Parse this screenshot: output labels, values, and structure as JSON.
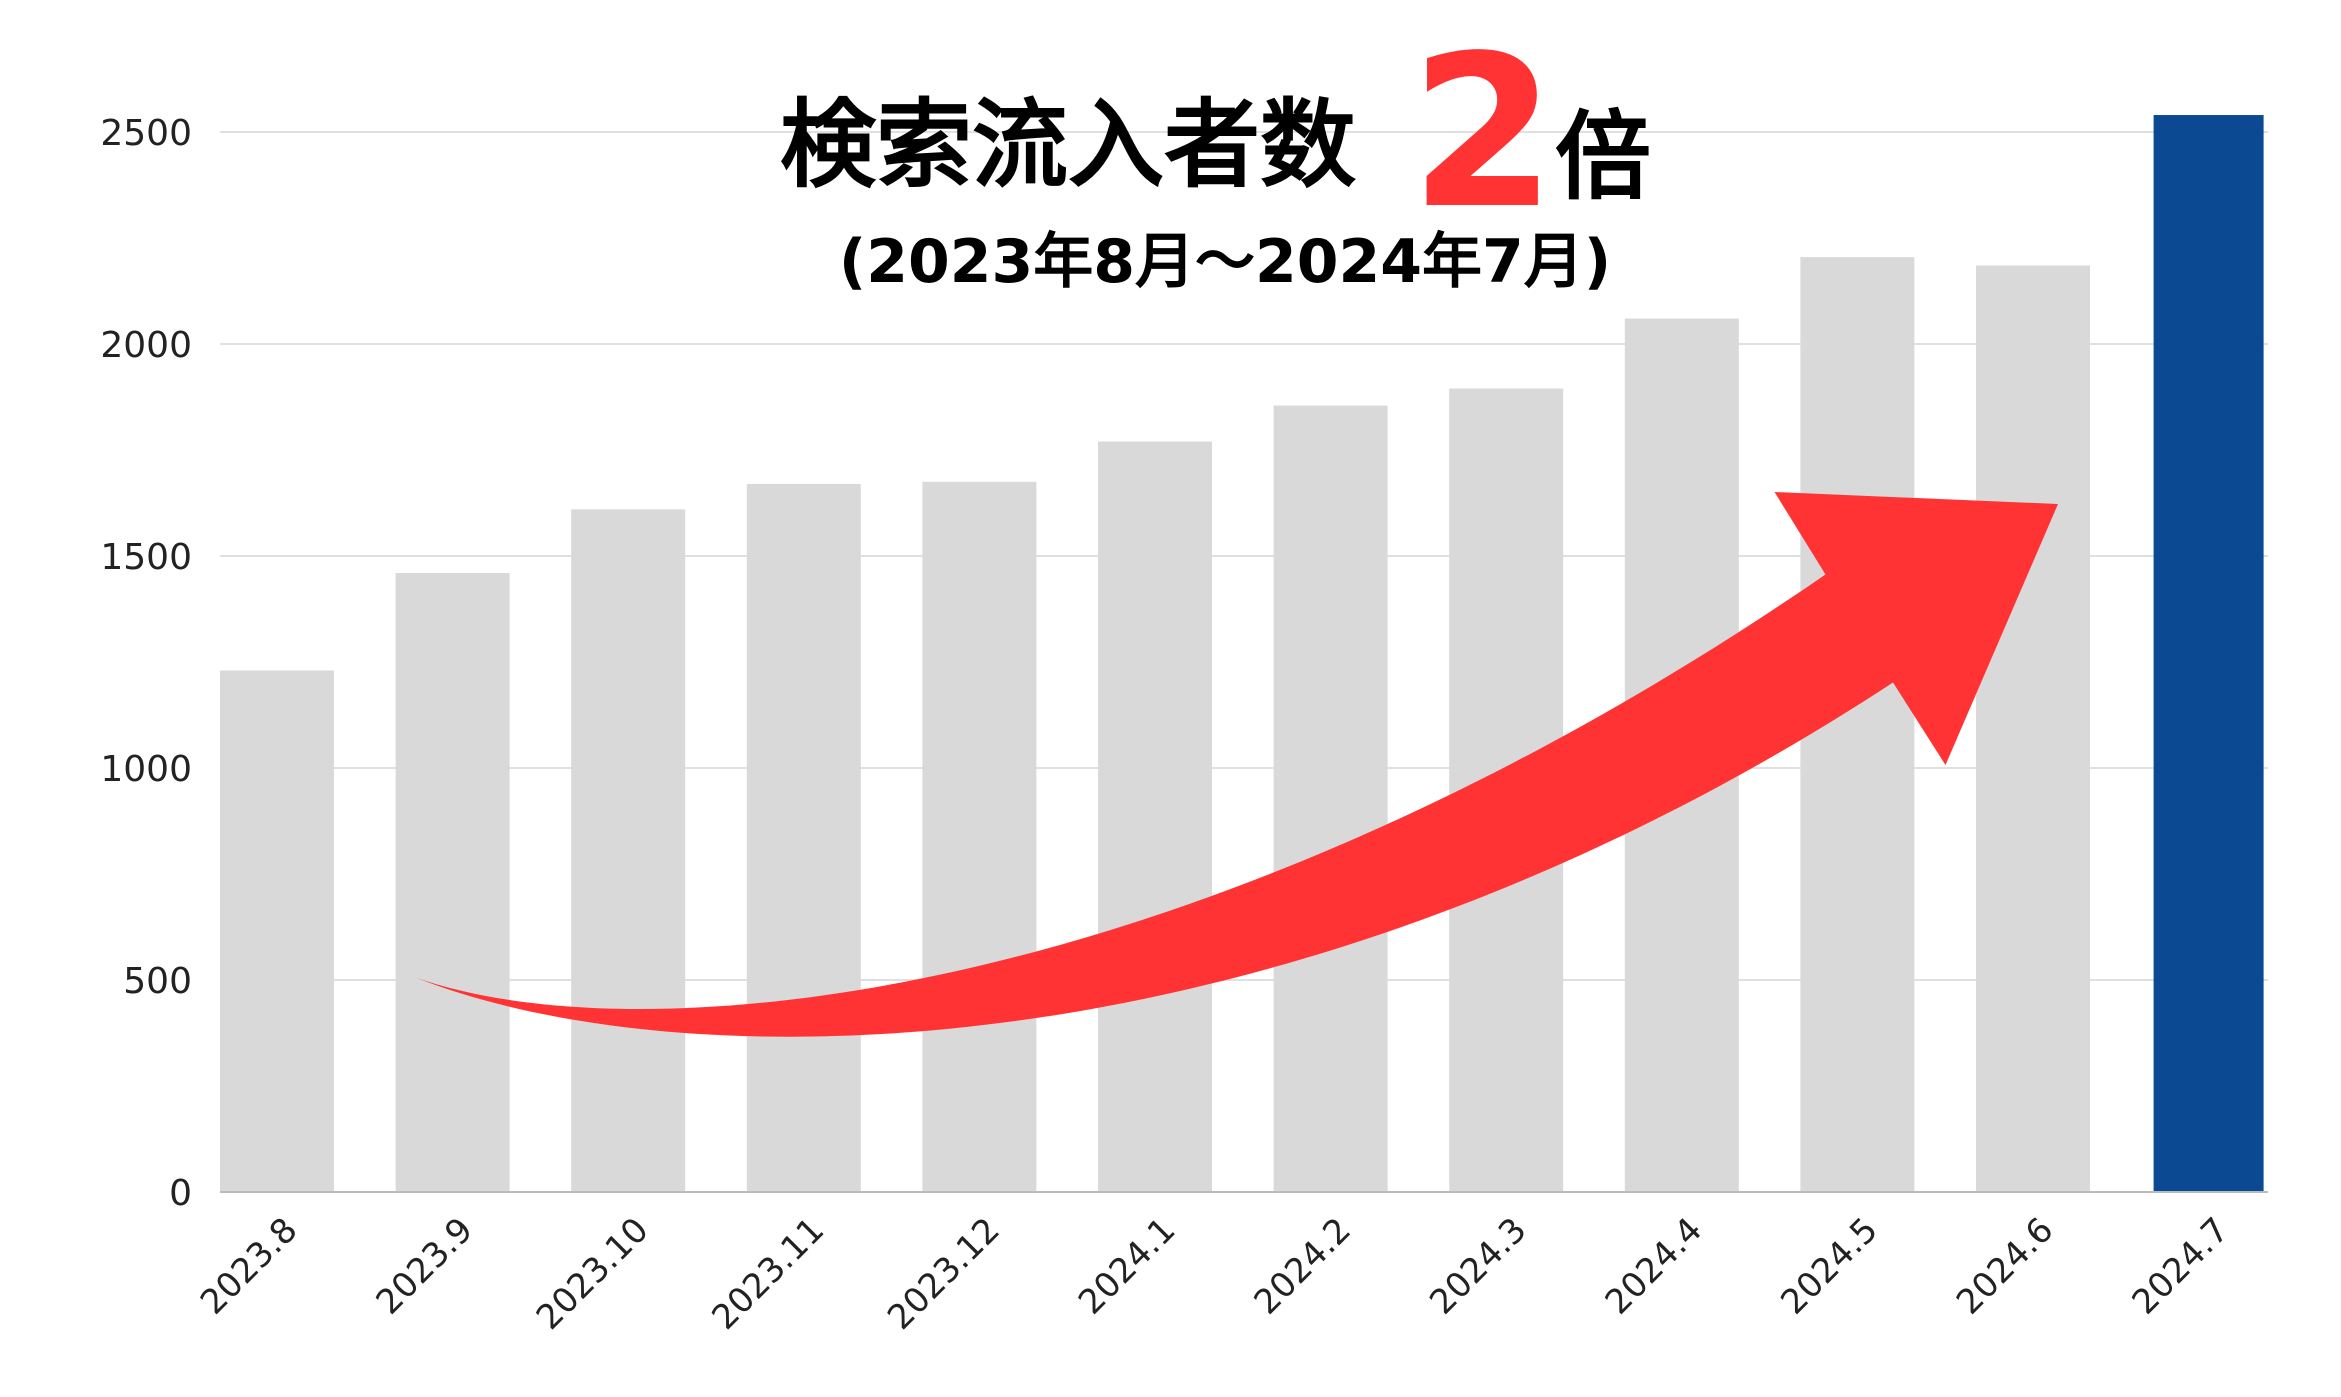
{
  "chart_data": {
    "type": "bar",
    "title_main": "検索流入者数",
    "title_highlight": "2",
    "title_suffix": "倍",
    "subtitle": "(2023年8月～2024年7月)",
    "xlabel": "",
    "ylabel": "",
    "ylim": [
      0,
      2500
    ],
    "yticks": [
      0,
      500,
      1000,
      1500,
      2000,
      2500
    ],
    "grid": true,
    "categories": [
      "2023.8",
      "2023.9",
      "2023.10",
      "2023.11",
      "2023.12",
      "2024.1",
      "2024.2",
      "2024.3",
      "2024.4",
      "2024.5",
      "2024.6",
      "2024.7"
    ],
    "values": [
      1230,
      1460,
      1610,
      1670,
      1675,
      1770,
      1855,
      1895,
      2060,
      2205,
      2185,
      2540
    ],
    "highlight_index": 11,
    "annotation": "red upward-trend arrow",
    "colors": {
      "bar": "#d9d9d9",
      "highlight": "#0b4a92",
      "arrow": "#ff3333",
      "grid": "#e0e0e0"
    }
  }
}
